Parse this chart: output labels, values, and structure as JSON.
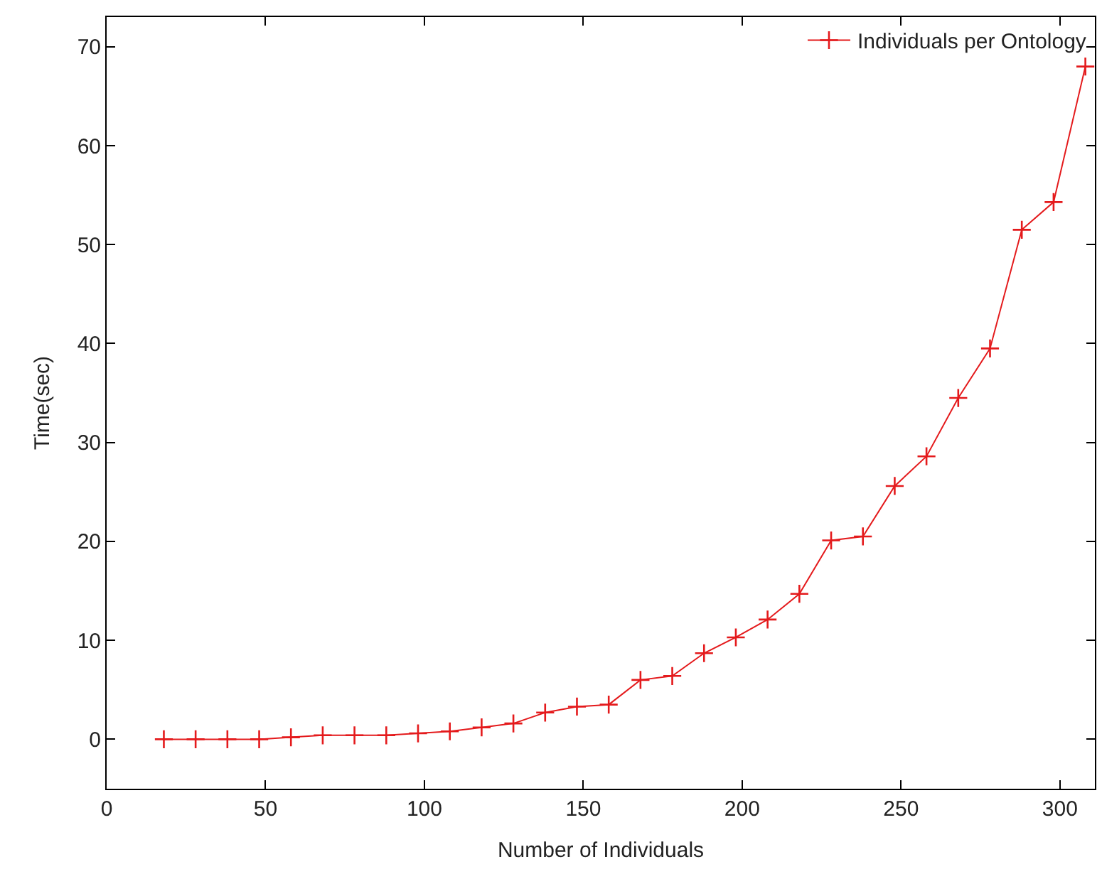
{
  "chart_data": {
    "type": "line",
    "xlabel": "Number of Individuals",
    "ylabel": "Time(sec)",
    "x": [
      18,
      28,
      38,
      48,
      58,
      68,
      78,
      88,
      98,
      108,
      118,
      128,
      138,
      148,
      158,
      168,
      178,
      188,
      198,
      208,
      218,
      228,
      238,
      248,
      258,
      268,
      278,
      288,
      298,
      308
    ],
    "series": [
      {
        "name": "Individuals per Ontology",
        "color": "#e41a1c",
        "values": [
          0,
          0,
          0,
          0,
          0.2,
          0.4,
          0.4,
          0.4,
          0.6,
          0.8,
          1.2,
          1.6,
          2.7,
          3.3,
          3.5,
          6.0,
          6.4,
          8.7,
          10.3,
          12.1,
          14.7,
          20.1,
          20.5,
          25.6,
          28.6,
          34.5,
          39.5,
          51.5,
          54.3,
          68
        ]
      }
    ],
    "xlim": [
      0,
      311
    ],
    "xticks": [
      0,
      50,
      100,
      150,
      200,
      250,
      300
    ],
    "ylim": [
      -5,
      73
    ],
    "yticks": [
      0,
      10,
      20,
      30,
      40,
      50,
      60,
      70
    ],
    "legend": "top right",
    "marker": "cross",
    "line_style": "solid"
  }
}
